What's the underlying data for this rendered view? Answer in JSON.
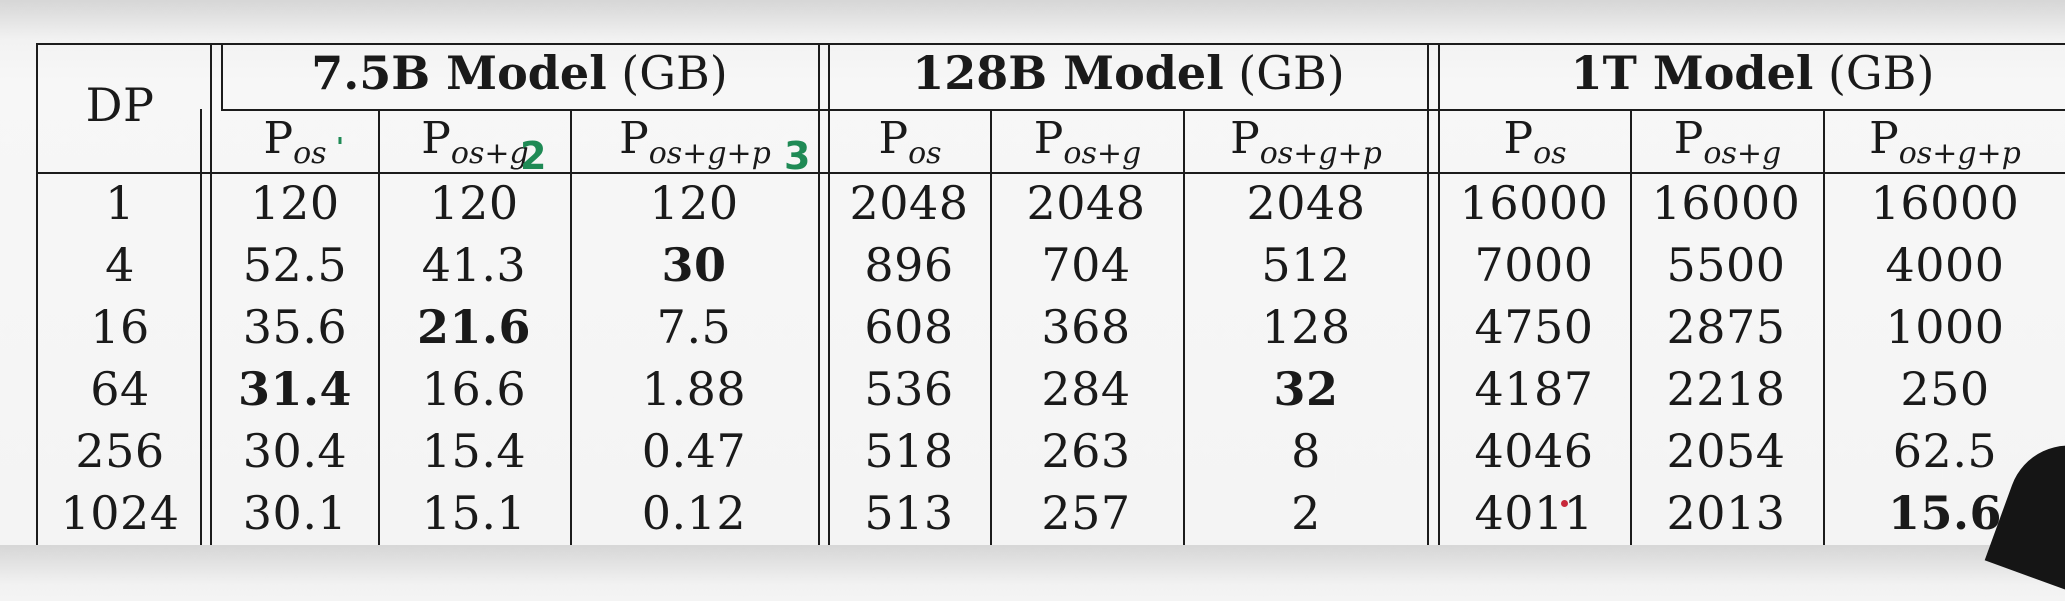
{
  "table": {
    "dp_header": "DP",
    "groups": [
      {
        "name": "7.5B Model",
        "unit": "(GB)"
      },
      {
        "name": "128B Model",
        "unit": "(GB)"
      },
      {
        "name": "1T Model",
        "unit": "(GB)"
      }
    ],
    "sub_headers": [
      {
        "base": "P",
        "sub": "os"
      },
      {
        "base": "P",
        "sub": "os+g"
      },
      {
        "base": "P",
        "sub": "os+g+p"
      }
    ],
    "rows": [
      {
        "dp": "1",
        "values": [
          "120",
          "120",
          "120",
          "2048",
          "2048",
          "2048",
          "16000",
          "16000",
          "16000"
        ]
      },
      {
        "dp": "4",
        "values": [
          "52.5",
          "41.3",
          "30",
          "896",
          "704",
          "512",
          "7000",
          "5500",
          "4000"
        ]
      },
      {
        "dp": "16",
        "values": [
          "35.6",
          "21.6",
          "7.5",
          "608",
          "368",
          "128",
          "4750",
          "2875",
          "1000"
        ]
      },
      {
        "dp": "64",
        "values": [
          "31.4",
          "16.6",
          "1.88",
          "536",
          "284",
          "32",
          "4187",
          "2218",
          "250"
        ]
      },
      {
        "dp": "256",
        "values": [
          "30.4",
          "15.4",
          "0.47",
          "518",
          "263",
          "8",
          "4046",
          "2054",
          "62.5"
        ]
      },
      {
        "dp": "1024",
        "values": [
          "30.1",
          "15.1",
          "0.12",
          "513",
          "257",
          "2",
          "4011",
          "2013",
          "15.6"
        ]
      }
    ],
    "bold_cells": [
      [
        1,
        2
      ],
      [
        2,
        1
      ],
      [
        3,
        0
      ],
      [
        3,
        5
      ],
      [
        5,
        8
      ]
    ]
  },
  "annotations": {
    "green_marks": [
      "'",
      "2",
      "3"
    ],
    "colors": {
      "pen_green": "#1f8a55",
      "pen_red": "#c8283a",
      "rule": "#1c1c1c"
    }
  }
}
